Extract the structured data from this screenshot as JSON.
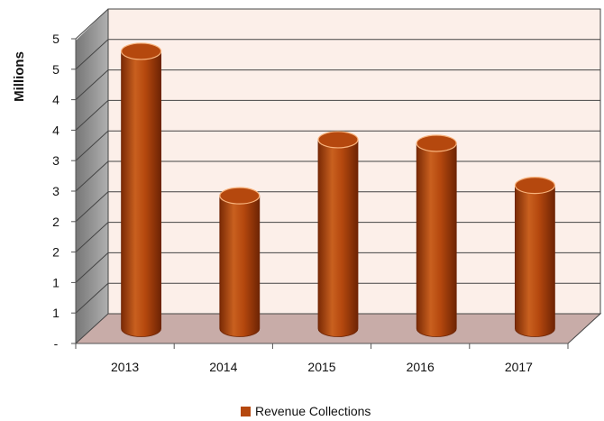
{
  "chart_data": {
    "type": "bar",
    "style": "3d-cylinder",
    "categories": [
      "2013",
      "2014",
      "2015",
      "2016",
      "2017"
    ],
    "series": [
      {
        "name": "Revenue Collections",
        "values": [
          4.55,
          2.18,
          3.1,
          3.04,
          2.35
        ],
        "color": "#b5480e"
      }
    ],
    "ylabel": "Millions",
    "ylim": [
      0,
      5
    ],
    "y_tick_values": [
      0,
      0.5,
      1,
      1.5,
      2,
      2.5,
      3,
      3.5,
      4,
      4.5,
      5
    ],
    "y_tick_labels": [
      "-",
      "1",
      "1",
      "2",
      "2",
      "3",
      "3",
      "4",
      "4",
      "5",
      "5"
    ],
    "grid": true,
    "legend_position": "bottom",
    "colors": {
      "wall": "#fcefe9",
      "floor": "#c8aca8",
      "side_wall": "#999999",
      "grid": "#444444"
    }
  }
}
